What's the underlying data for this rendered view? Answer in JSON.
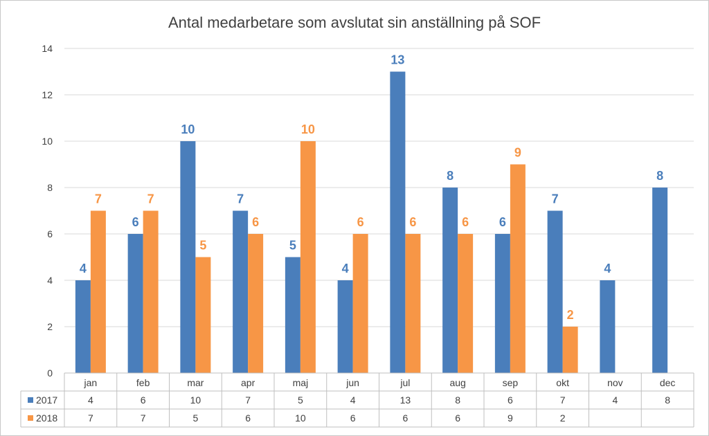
{
  "chart_data": {
    "type": "bar",
    "title": "Antal medarbetare som avslutat sin anställning på SOF",
    "xlabel": "",
    "ylabel": "",
    "ylim": [
      0,
      14
    ],
    "yticks": [
      0,
      2,
      4,
      6,
      8,
      10,
      12,
      14
    ],
    "grid": true,
    "legend": "data-table-left",
    "categories": [
      "jan",
      "feb",
      "mar",
      "apr",
      "maj",
      "jun",
      "jul",
      "aug",
      "sep",
      "okt",
      "nov",
      "dec"
    ],
    "series": [
      {
        "name": "2017",
        "color": "#4a7ebb",
        "label_color": "#4a7ebb",
        "values": [
          4,
          6,
          10,
          7,
          5,
          4,
          13,
          8,
          6,
          7,
          4,
          8
        ]
      },
      {
        "name": "2018",
        "color": "#f79646",
        "label_color": "#f79646",
        "values": [
          7,
          7,
          5,
          6,
          10,
          6,
          6,
          6,
          9,
          2,
          null,
          null
        ]
      }
    ]
  }
}
